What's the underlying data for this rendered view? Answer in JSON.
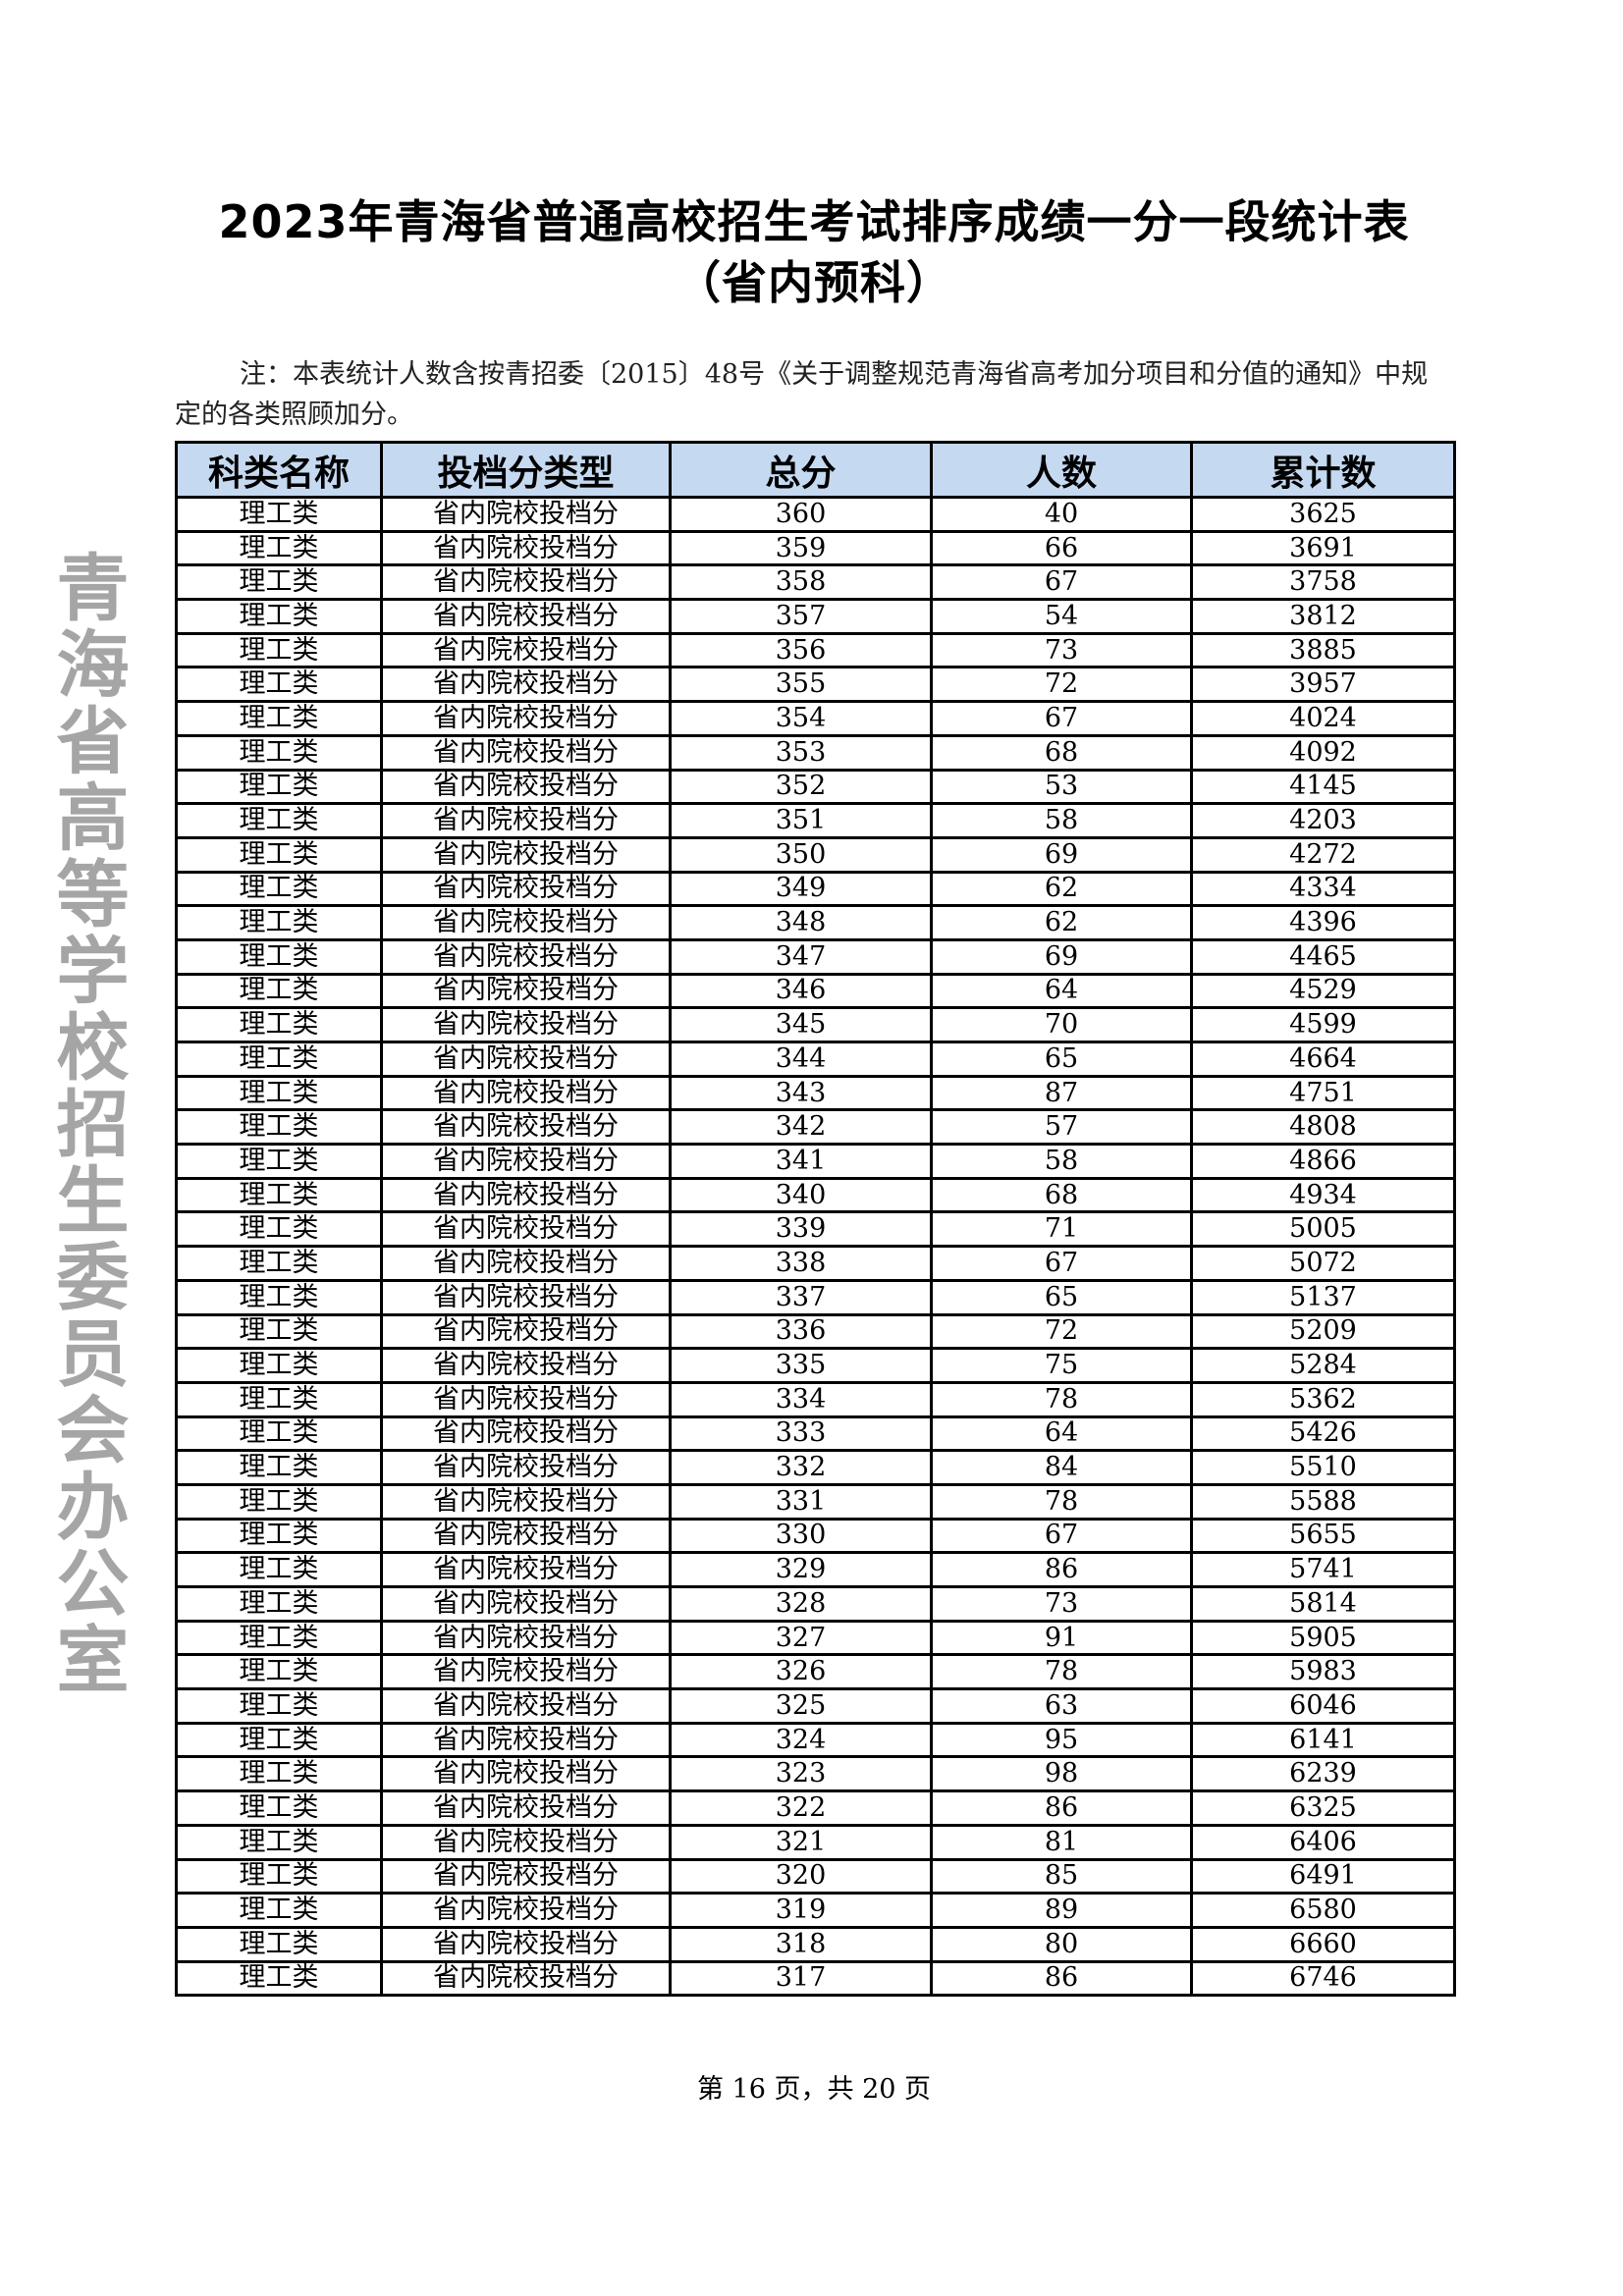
{
  "title": "2023年青海省普通高校招生考试排序成绩一分一段统计表",
  "subtitle": "（省内预科）",
  "note": "注：本表统计人数含按青招委〔2015〕48号《关于调整规范青海省高考加分项目和分值的通知》中规定的各类照顾加分。",
  "table": {
    "headers": [
      "科类名称",
      "投档分类型",
      "总分",
      "人数",
      "累计数"
    ],
    "header_bg": "#c5d9f1",
    "category": "理工类",
    "type": "省内院校投档分",
    "rows": [
      [
        360,
        40,
        3625
      ],
      [
        359,
        66,
        3691
      ],
      [
        358,
        67,
        3758
      ],
      [
        357,
        54,
        3812
      ],
      [
        356,
        73,
        3885
      ],
      [
        355,
        72,
        3957
      ],
      [
        354,
        67,
        4024
      ],
      [
        353,
        68,
        4092
      ],
      [
        352,
        53,
        4145
      ],
      [
        351,
        58,
        4203
      ],
      [
        350,
        69,
        4272
      ],
      [
        349,
        62,
        4334
      ],
      [
        348,
        62,
        4396
      ],
      [
        347,
        69,
        4465
      ],
      [
        346,
        64,
        4529
      ],
      [
        345,
        70,
        4599
      ],
      [
        344,
        65,
        4664
      ],
      [
        343,
        87,
        4751
      ],
      [
        342,
        57,
        4808
      ],
      [
        341,
        58,
        4866
      ],
      [
        340,
        68,
        4934
      ],
      [
        339,
        71,
        5005
      ],
      [
        338,
        67,
        5072
      ],
      [
        337,
        65,
        5137
      ],
      [
        336,
        72,
        5209
      ],
      [
        335,
        75,
        5284
      ],
      [
        334,
        78,
        5362
      ],
      [
        333,
        64,
        5426
      ],
      [
        332,
        84,
        5510
      ],
      [
        331,
        78,
        5588
      ],
      [
        330,
        67,
        5655
      ],
      [
        329,
        86,
        5741
      ],
      [
        328,
        73,
        5814
      ],
      [
        327,
        91,
        5905
      ],
      [
        326,
        78,
        5983
      ],
      [
        325,
        63,
        6046
      ],
      [
        324,
        95,
        6141
      ],
      [
        323,
        98,
        6239
      ],
      [
        322,
        86,
        6325
      ],
      [
        321,
        81,
        6406
      ],
      [
        320,
        85,
        6491
      ],
      [
        319,
        89,
        6580
      ],
      [
        318,
        80,
        6660
      ],
      [
        317,
        86,
        6746
      ]
    ]
  },
  "watermark": "青海省高等学校招生委员会办公室",
  "footer": "第 16 页，共 20 页"
}
